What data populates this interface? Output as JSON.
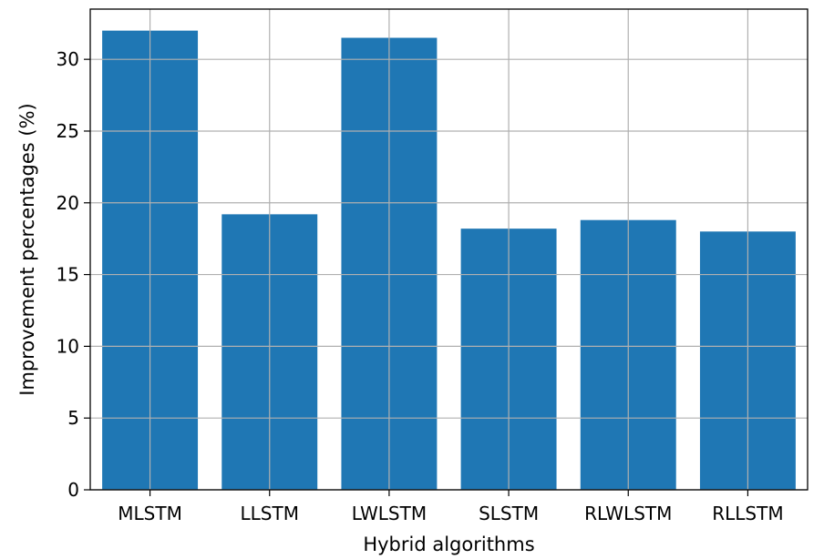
{
  "chart_data": {
    "type": "bar",
    "title": "",
    "xlabel": "Hybrid algorithms",
    "ylabel": "Improvement percentages (%)",
    "categories": [
      "MLSTM",
      "LLSTM",
      "LWLSTM",
      "SLSTM",
      "RLWLSTM",
      "RLLSTM"
    ],
    "values": [
      32.0,
      19.2,
      31.5,
      18.2,
      18.8,
      18.0
    ],
    "ylim": [
      0,
      33.5
    ],
    "yticks": [
      0,
      5,
      10,
      15,
      20,
      25,
      30
    ],
    "grid": true,
    "legend": "none",
    "bar_color": "#1f77b4",
    "grid_color": "#b0b0b0"
  }
}
